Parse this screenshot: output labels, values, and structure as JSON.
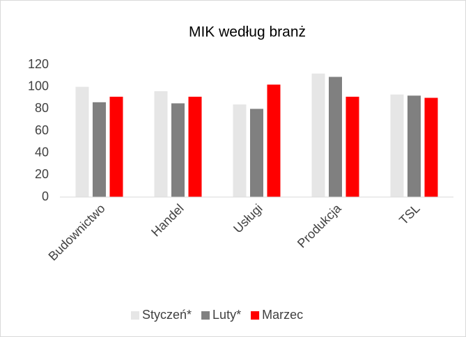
{
  "chart_data": {
    "type": "bar",
    "title": "MIK według branż",
    "categories": [
      "Budownictwo",
      "Handel",
      "Usługi",
      "Produkcja",
      "TSL"
    ],
    "series": [
      {
        "name": "Styczeń*",
        "color": "#e6e6e6",
        "values": [
          100,
          96,
          84,
          112,
          93
        ]
      },
      {
        "name": "Luty*",
        "color": "#808080",
        "values": [
          86,
          85,
          80,
          109,
          92
        ]
      },
      {
        "name": "Marzec",
        "color": "#ff0000",
        "values": [
          91,
          91,
          102,
          91,
          90
        ]
      }
    ],
    "ylim": [
      0,
      120
    ],
    "yticks": [
      0,
      20,
      40,
      60,
      80,
      100,
      120
    ],
    "grid": false,
    "legend": "bottom"
  }
}
